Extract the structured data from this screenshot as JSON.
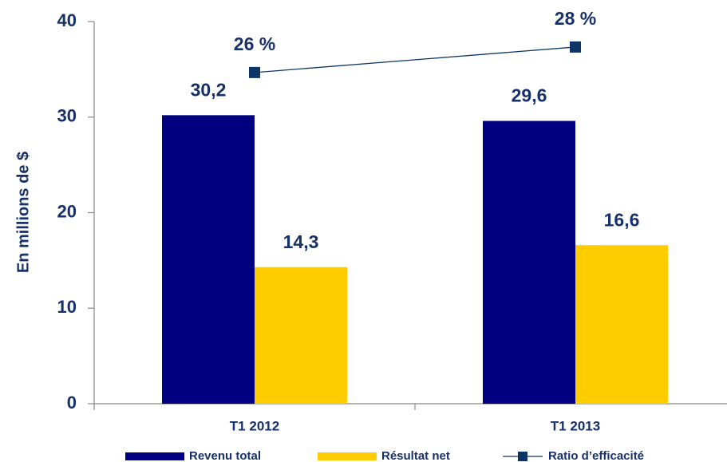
{
  "chart_data": {
    "type": "bar",
    "ylabel": "En millions de $",
    "categories": [
      "T1 2012",
      "T1 2013"
    ],
    "ylim": [
      0,
      40
    ],
    "yticks": [
      0,
      10,
      20,
      30,
      40
    ],
    "y2lim": [
      0,
      30
    ],
    "series": [
      {
        "name": "Revenu total",
        "type": "bar",
        "color": "#000080",
        "values": [
          30.2,
          29.6
        ],
        "value_labels": [
          "30,2",
          "29,6"
        ]
      },
      {
        "name": "Résultat net",
        "type": "bar",
        "color": "#ffcc00",
        "values": [
          14.3,
          16.6
        ],
        "value_labels": [
          "14,3",
          "16,6"
        ]
      },
      {
        "name": "Ratio d’efficacité",
        "type": "line",
        "axis": "y2",
        "color": "#0b3566",
        "values": [
          26,
          28
        ],
        "value_labels": [
          "26 %",
          "28 %"
        ]
      }
    ]
  }
}
